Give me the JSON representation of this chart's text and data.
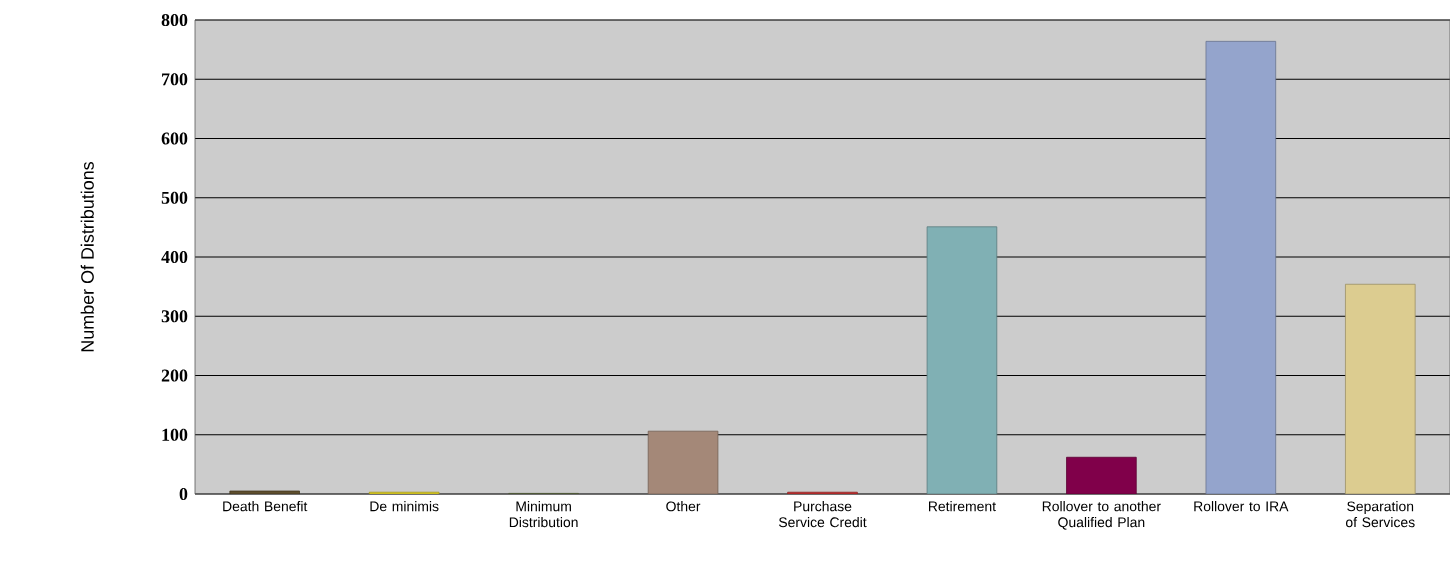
{
  "chart_data": {
    "type": "bar",
    "ylabel": "Number Of Distributions",
    "categories": [
      "Death Benefit",
      "De minimis",
      "Minimum Distribution",
      "Other",
      "Purchase Service Credit",
      "Retirement",
      "Rollover to another Qualified Plan",
      "Rollover to IRA",
      "Separation of Services"
    ],
    "values": [
      5,
      3,
      1,
      106,
      3,
      451,
      62,
      764,
      354
    ],
    "colors": [
      "#5e4f2e",
      "#e8d820",
      "#6b7a4a",
      "#a48878",
      "#c83030",
      "#80b0b4",
      "#80004a",
      "#94a4cc",
      "#dccc90"
    ],
    "ylim": [
      0,
      800
    ],
    "yticks": [
      0,
      100,
      200,
      300,
      400,
      500,
      600,
      700,
      800
    ],
    "grid": "y"
  }
}
